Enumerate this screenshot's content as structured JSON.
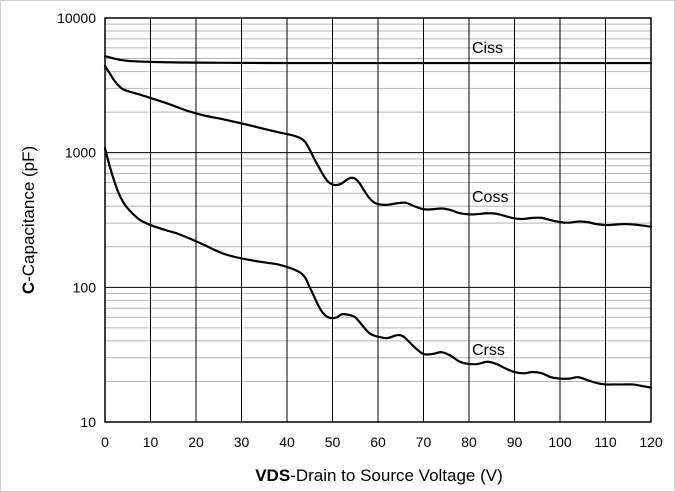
{
  "chart_data": {
    "type": "line",
    "title": "",
    "xlabel_bold": "VDS",
    "xlabel_rest": "-Drain to Source Voltage (V)",
    "ylabel_bold": "C",
    "ylabel_rest": "-Capacitance (pF)",
    "xlim": [
      0,
      120
    ],
    "ylim": [
      10,
      10000
    ],
    "yscale": "log",
    "x_ticks": [
      0,
      10,
      20,
      30,
      40,
      50,
      60,
      70,
      80,
      90,
      100,
      110,
      120
    ],
    "x_tick_labels": [
      "0",
      "10",
      "20",
      "30",
      "40",
      "50",
      "60",
      "70",
      "80",
      "90",
      "100",
      "110",
      "120"
    ],
    "y_ticks": [
      10,
      100,
      1000,
      10000
    ],
    "y_tick_labels": [
      "10",
      "100",
      "1000",
      "10000"
    ],
    "grid": true,
    "series": [
      {
        "name": "Ciss",
        "points": [
          [
            0,
            5200
          ],
          [
            2,
            5000
          ],
          [
            4,
            4850
          ],
          [
            6,
            4780
          ],
          [
            10,
            4720
          ],
          [
            15,
            4680
          ],
          [
            20,
            4660
          ],
          [
            30,
            4640
          ],
          [
            40,
            4630
          ],
          [
            50,
            4630
          ],
          [
            60,
            4630
          ],
          [
            70,
            4630
          ],
          [
            80,
            4630
          ],
          [
            90,
            4630
          ],
          [
            100,
            4630
          ],
          [
            110,
            4630
          ],
          [
            120,
            4630
          ]
        ]
      },
      {
        "name": "Coss",
        "points": [
          [
            0,
            4400
          ],
          [
            1,
            3900
          ],
          [
            2,
            3450
          ],
          [
            3,
            3150
          ],
          [
            4,
            2950
          ],
          [
            6,
            2800
          ],
          [
            8,
            2680
          ],
          [
            10,
            2550
          ],
          [
            14,
            2300
          ],
          [
            18,
            2050
          ],
          [
            22,
            1880
          ],
          [
            26,
            1770
          ],
          [
            30,
            1650
          ],
          [
            34,
            1530
          ],
          [
            38,
            1420
          ],
          [
            41,
            1350
          ],
          [
            43,
            1280
          ],
          [
            44,
            1200
          ],
          [
            45,
            1050
          ],
          [
            46,
            900
          ],
          [
            47,
            780
          ],
          [
            48,
            680
          ],
          [
            49,
            610
          ],
          [
            50,
            580
          ],
          [
            51,
            575
          ],
          [
            52,
            590
          ],
          [
            53,
            625
          ],
          [
            54,
            650
          ],
          [
            55,
            640
          ],
          [
            56,
            590
          ],
          [
            57,
            520
          ],
          [
            58,
            465
          ],
          [
            59,
            430
          ],
          [
            60,
            415
          ],
          [
            62,
            410
          ],
          [
            64,
            420
          ],
          [
            66,
            425
          ],
          [
            68,
            400
          ],
          [
            70,
            380
          ],
          [
            72,
            380
          ],
          [
            74,
            385
          ],
          [
            76,
            375
          ],
          [
            78,
            355
          ],
          [
            80,
            348
          ],
          [
            82,
            350
          ],
          [
            84,
            355
          ],
          [
            86,
            352
          ],
          [
            88,
            338
          ],
          [
            90,
            325
          ],
          [
            92,
            322
          ],
          [
            94,
            328
          ],
          [
            96,
            328
          ],
          [
            98,
            315
          ],
          [
            100,
            305
          ],
          [
            102,
            302
          ],
          [
            104,
            308
          ],
          [
            106,
            305
          ],
          [
            108,
            295
          ],
          [
            110,
            290
          ],
          [
            112,
            292
          ],
          [
            114,
            295
          ],
          [
            116,
            293
          ],
          [
            118,
            288
          ],
          [
            120,
            282
          ]
        ]
      },
      {
        "name": "Crss",
        "points": [
          [
            0,
            1080
          ],
          [
            1,
            800
          ],
          [
            2,
            620
          ],
          [
            3,
            500
          ],
          [
            4,
            430
          ],
          [
            5,
            385
          ],
          [
            6,
            355
          ],
          [
            7,
            330
          ],
          [
            8,
            312
          ],
          [
            10,
            290
          ],
          [
            12,
            275
          ],
          [
            14,
            262
          ],
          [
            16,
            250
          ],
          [
            18,
            235
          ],
          [
            20,
            220
          ],
          [
            22,
            205
          ],
          [
            24,
            190
          ],
          [
            26,
            178
          ],
          [
            28,
            170
          ],
          [
            30,
            164
          ],
          [
            34,
            155
          ],
          [
            38,
            148
          ],
          [
            41,
            138
          ],
          [
            43,
            128
          ],
          [
            44,
            118
          ],
          [
            45,
            100
          ],
          [
            46,
            85
          ],
          [
            47,
            72
          ],
          [
            48,
            64
          ],
          [
            49,
            60
          ],
          [
            50,
            59
          ],
          [
            51,
            60
          ],
          [
            52,
            63
          ],
          [
            53,
            63
          ],
          [
            54,
            62
          ],
          [
            55,
            60
          ],
          [
            56,
            55
          ],
          [
            57,
            50
          ],
          [
            58,
            46
          ],
          [
            59,
            44
          ],
          [
            60,
            43
          ],
          [
            62,
            42
          ],
          [
            64,
            44
          ],
          [
            65,
            44
          ],
          [
            66,
            42
          ],
          [
            68,
            36
          ],
          [
            70,
            32
          ],
          [
            72,
            32
          ],
          [
            74,
            33
          ],
          [
            76,
            31
          ],
          [
            78,
            28
          ],
          [
            80,
            27
          ],
          [
            82,
            27
          ],
          [
            84,
            28
          ],
          [
            86,
            27
          ],
          [
            88,
            25
          ],
          [
            90,
            23.5
          ],
          [
            92,
            23
          ],
          [
            94,
            23.5
          ],
          [
            96,
            23
          ],
          [
            98,
            21.5
          ],
          [
            100,
            21
          ],
          [
            102,
            21
          ],
          [
            104,
            21.5
          ],
          [
            106,
            20.5
          ],
          [
            108,
            19.5
          ],
          [
            110,
            19
          ],
          [
            112,
            19
          ],
          [
            114,
            19
          ],
          [
            116,
            19
          ],
          [
            118,
            18.5
          ],
          [
            120,
            18
          ]
        ]
      }
    ]
  }
}
